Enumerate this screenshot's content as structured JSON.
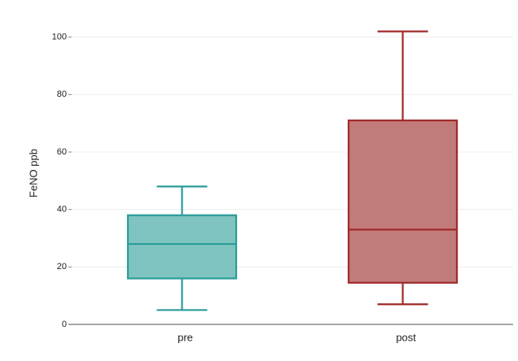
{
  "chart_data": {
    "type": "box",
    "ylabel": "FeNO ppb",
    "categories": [
      "pre",
      "post"
    ],
    "boxes": [
      {
        "min": 5,
        "q1": 16,
        "median": 28,
        "q3": 38,
        "max": 48,
        "fill": "#7fc4c0",
        "stroke": "#2a9d99"
      },
      {
        "min": 7,
        "q1": 14.5,
        "median": 33,
        "q3": 71,
        "max": 102,
        "fill": "#c27b7b",
        "stroke": "#a02a2a"
      }
    ],
    "ylim": [
      0,
      105
    ],
    "yticks": [
      0,
      20,
      40,
      60,
      80,
      100
    ],
    "grid": true
  }
}
